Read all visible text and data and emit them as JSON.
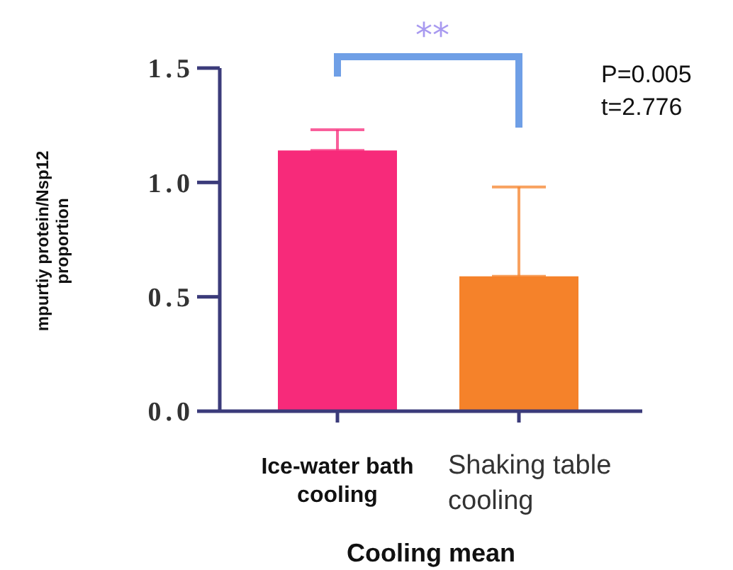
{
  "chart_data": {
    "type": "bar",
    "xlabel": "Cooling mean",
    "ylabel": "mpurtiy protein/Nsp12\nproportion",
    "categories": [
      "Ice-water bath\ncooling",
      "Shaking table\ncooling"
    ],
    "values": [
      1.14,
      0.59
    ],
    "colors": [
      "#f72a7a",
      "#f5822a"
    ],
    "errors": [
      [
        1.14,
        1.23
      ],
      [
        0.59,
        0.98
      ]
    ],
    "ylim": [
      0,
      1.5
    ],
    "yticks": [
      {
        "value": 0,
        "label": "0.0"
      },
      {
        "value": 0.5,
        "label": "0.5"
      },
      {
        "value": 1,
        "label": "1.0"
      },
      {
        "value": 1.5,
        "label": "1.5"
      }
    ],
    "grid": false,
    "legend": false,
    "annotations": [
      "**",
      "P=0.005",
      "t=2.776"
    ]
  }
}
